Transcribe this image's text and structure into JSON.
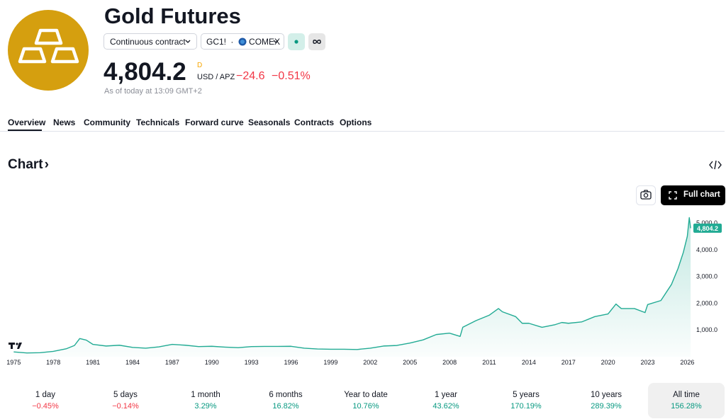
{
  "header": {
    "title": "Gold Futures",
    "contract": "Continuous contract",
    "symbol": "GC1!",
    "separator": "·",
    "exchange": "COMEX",
    "price": "4,804.2",
    "price_flag": "D",
    "currency": "USD / APZ",
    "change": "−24.6",
    "change_percent": "−0.51%",
    "as_of": "As of today at 13:09 GMT+2"
  },
  "tabs": [
    "Overview",
    "News",
    "Community",
    "Technicals",
    "Forward curve",
    "Seasonals",
    "Contracts",
    "Options"
  ],
  "section_title": "Chart",
  "section_arrow": "›",
  "full_chart_button": "Full chart",
  "chart_data": {
    "type": "line",
    "color": "#22ab94",
    "x": [
      1975,
      1976,
      1977,
      1978,
      1979,
      1979.6,
      1980,
      1980.5,
      1981,
      1982,
      1983,
      1984,
      1985,
      1986,
      1987,
      1988,
      1989,
      1990,
      1991,
      1992,
      1993,
      1994,
      1995,
      1996,
      1997,
      1998,
      1999,
      2000,
      2001,
      2002,
      2003,
      2004,
      2005,
      2006,
      2007,
      2008,
      2008.8,
      2009,
      2010,
      2011,
      2011.7,
      2012,
      2013,
      2013.5,
      2014,
      2015,
      2016,
      2016.5,
      2017,
      2018,
      2019,
      2020,
      2020.6,
      2021,
      2022,
      2022.8,
      2023,
      2024,
      2024.8,
      2025.3,
      2025.7,
      2026,
      2026.15,
      2026.25
    ],
    "y": [
      180,
      140,
      150,
      200,
      300,
      420,
      680,
      620,
      460,
      400,
      430,
      350,
      320,
      370,
      460,
      430,
      380,
      390,
      360,
      340,
      380,
      385,
      385,
      390,
      320,
      290,
      280,
      280,
      270,
      320,
      400,
      420,
      510,
      630,
      830,
      880,
      760,
      1100,
      1350,
      1550,
      1800,
      1680,
      1500,
      1250,
      1250,
      1100,
      1200,
      1280,
      1250,
      1300,
      1500,
      1600,
      1970,
      1800,
      1800,
      1650,
      1950,
      2100,
      2700,
      3300,
      3900,
      4500,
      5200,
      4804.2
    ],
    "xlim": [
      1974.5,
      2026.3
    ],
    "ylim": [
      0,
      5450
    ],
    "xticks": [
      1975,
      1978,
      1981,
      1984,
      1987,
      1990,
      1993,
      1996,
      1999,
      2002,
      2005,
      2008,
      2011,
      2014,
      2017,
      2020,
      2023,
      2026
    ],
    "yticks": [
      {
        "value": 1000,
        "label": "1,000.0"
      },
      {
        "value": 2000,
        "label": "2,000.0"
      },
      {
        "value": 3000,
        "label": "3,000.0"
      },
      {
        "value": 4000,
        "label": "4,000.0"
      },
      {
        "value": 5000,
        "label": "5,000.0"
      }
    ],
    "last_price": {
      "value": 4804.2,
      "label": "4,804.2"
    }
  },
  "periods": [
    {
      "label": "1 day",
      "value": "−0.45%",
      "color": "#f23645"
    },
    {
      "label": "5 days",
      "value": "−0.14%",
      "color": "#f23645"
    },
    {
      "label": "1 month",
      "value": "3.29%",
      "color": "#089981"
    },
    {
      "label": "6 months",
      "value": "16.82%",
      "color": "#089981"
    },
    {
      "label": "Year to date",
      "value": "10.76%",
      "color": "#089981"
    },
    {
      "label": "1 year",
      "value": "43.62%",
      "color": "#089981"
    },
    {
      "label": "5 years",
      "value": "170.19%",
      "color": "#089981"
    },
    {
      "label": "10 years",
      "value": "289.39%",
      "color": "#089981"
    },
    {
      "label": "All time",
      "value": "156.28%",
      "color": "#089981",
      "selected": true
    }
  ]
}
